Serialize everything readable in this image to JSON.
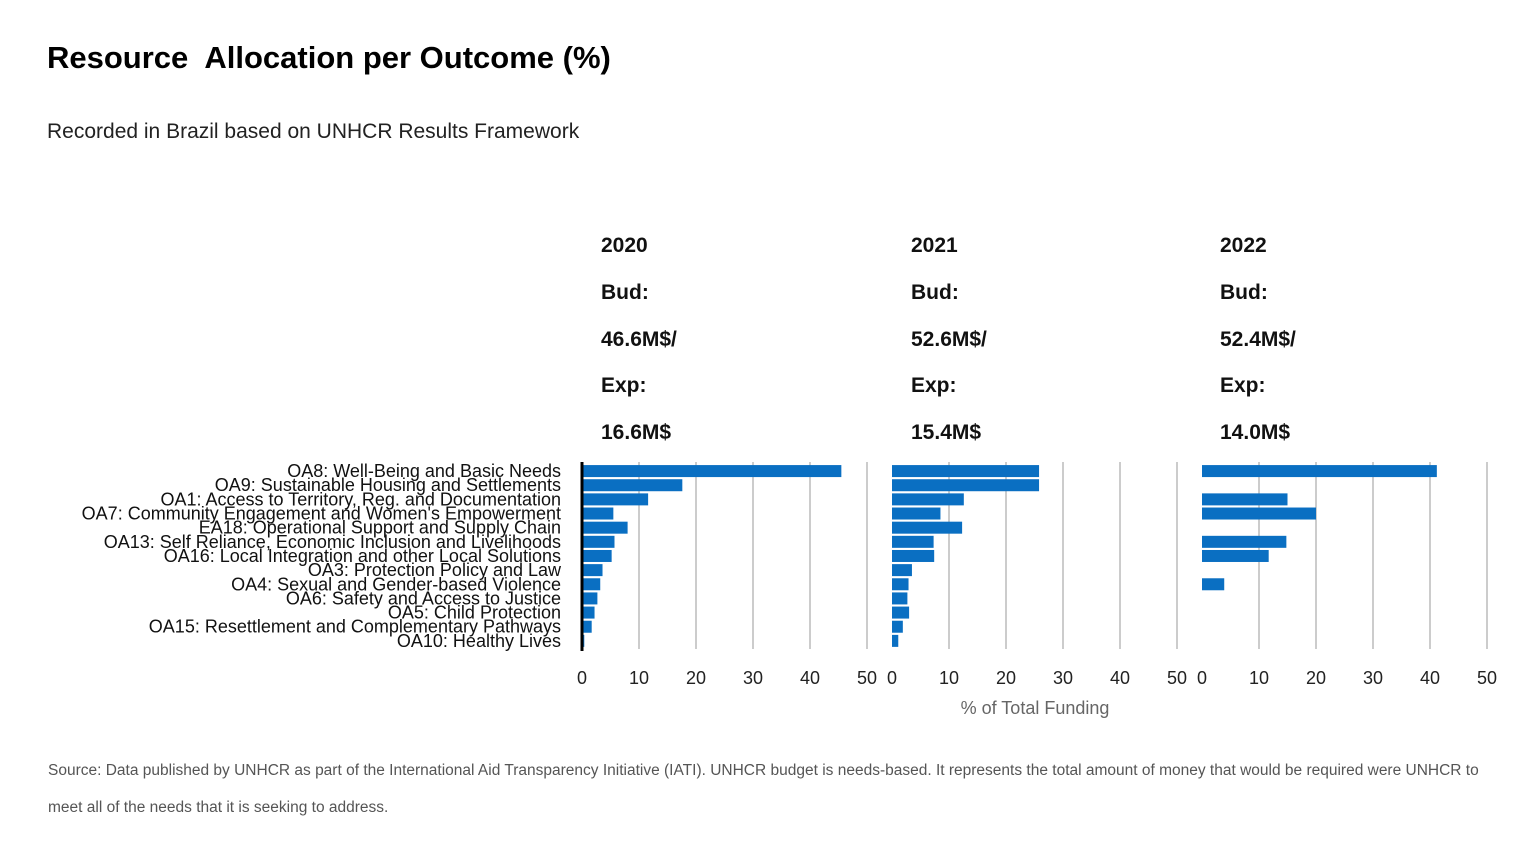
{
  "title": "Resource  Allocation per Outcome (%)",
  "subtitle": "Recorded in Brazil based on UNHCR Results Framework",
  "source": "Source: Data published by UNHCR as part of the International  Aid Transparency Initiative (IATI). UNHCR budget is needs-based. It represents the total amount of money that would be required were UNHCR to meet all of the needs that it is seeking to address.",
  "colors": {
    "bar": "#0a6fc2",
    "grid": "#cccccc",
    "axis": "#000000"
  },
  "chart_data": {
    "type": "bar",
    "orientation": "horizontal",
    "title": "Resource  Allocation per Outcome (%)",
    "subtitle": "Recorded in Brazil based on UNHCR Results Framework",
    "xlabel": "% of Total Funding",
    "xlim": [
      0,
      50
    ],
    "x_ticks": [
      0,
      10,
      20,
      30,
      40,
      50
    ],
    "grid": true,
    "categories": [
      "OA8: Well-Being and Basic Needs",
      "OA9: Sustainable Housing and Settlements",
      "OA1: Access to Territory, Reg. and Documentation",
      "OA7: Community Engagement and Women's Empowerment",
      "EA18: Operational Support and Supply Chain",
      "OA13: Self Reliance, Economic Inclusion and Livelihoods",
      "OA16: Local Integration and other Local Solutions",
      "OA3: Protection Policy and Law",
      "OA4: Sexual and Gender-based Violence",
      "OA6: Safety and Access to Justice",
      "OA5: Child Protection",
      "OA15: Resettlement and Complementary Pathways",
      "OA10: Healthy Lives"
    ],
    "panels": [
      {
        "year": "2020",
        "bud_label": "Bud:",
        "bud": "46.6M$/",
        "exp_label": "Exp:",
        "exp": "16.6M$",
        "values": [
          45.5,
          17.6,
          11.6,
          5.5,
          8.0,
          5.7,
          5.2,
          3.6,
          3.2,
          2.7,
          2.2,
          1.7,
          0.4
        ]
      },
      {
        "year": "2021",
        "bud_label": "Bud:",
        "bud": "52.6M$/",
        "exp_label": "Exp:",
        "exp": "15.4M$",
        "values": [
          25.8,
          25.8,
          12.6,
          8.5,
          12.3,
          7.3,
          7.4,
          3.5,
          2.9,
          2.7,
          3.0,
          1.9,
          1.1
        ]
      },
      {
        "year": "2022",
        "bud_label": "Bud:",
        "bud": "52.4M$/",
        "exp_label": "Exp:",
        "exp": "14.0M$",
        "values": [
          41.2,
          0,
          15.0,
          20.0,
          0,
          14.8,
          11.7,
          0,
          3.9,
          0,
          0,
          0,
          0
        ]
      }
    ]
  }
}
